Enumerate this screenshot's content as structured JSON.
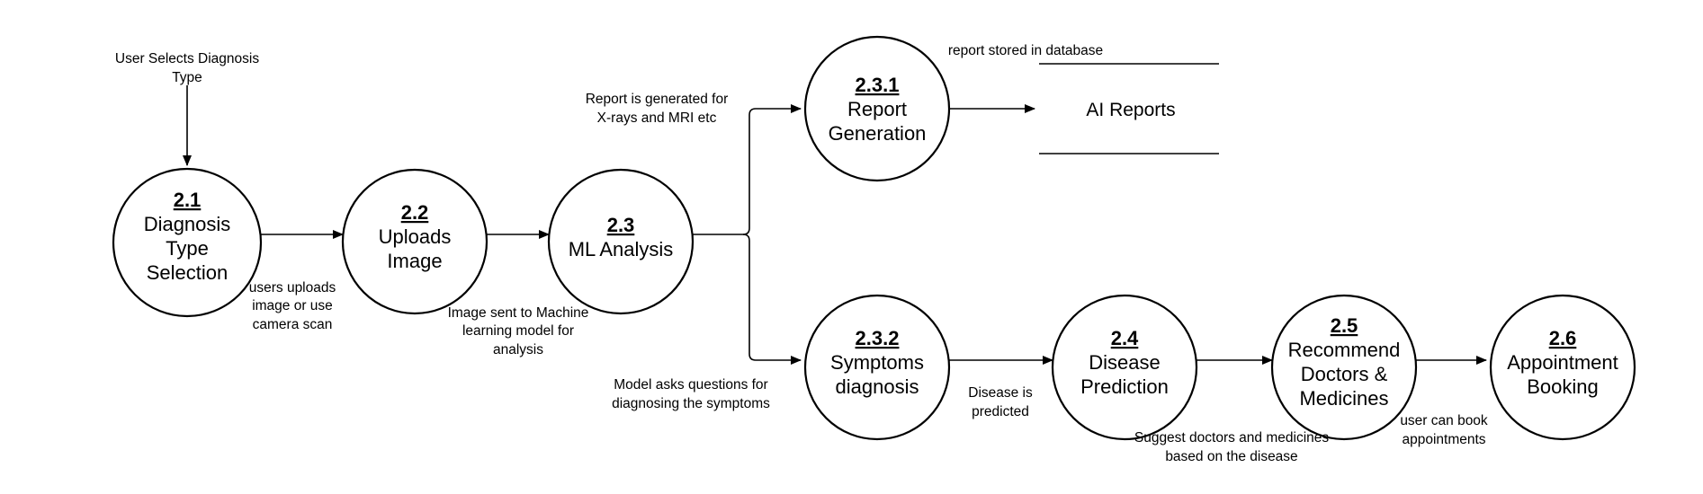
{
  "processes": [
    {
      "id": "2.1",
      "lines": [
        "Diagnosis",
        "Type",
        "Selection"
      ]
    },
    {
      "id": "2.2",
      "lines": [
        "Uploads",
        "Image"
      ]
    },
    {
      "id": "2.3",
      "lines": [
        "ML Analysis"
      ]
    },
    {
      "id": "2.3.1",
      "lines": [
        "Report",
        "Generation"
      ]
    },
    {
      "id": "2.3.2",
      "lines": [
        "Symptoms",
        "diagnosis"
      ]
    },
    {
      "id": "2.4",
      "lines": [
        "Disease",
        "Prediction"
      ]
    },
    {
      "id": "2.5",
      "lines": [
        "Recommend",
        "Doctors &",
        "Medicines"
      ]
    },
    {
      "id": "2.6",
      "lines": [
        "Appointment",
        "Booking"
      ]
    }
  ],
  "datastore": {
    "label": "AI Reports"
  },
  "annotations": {
    "user_selects": [
      "User Selects Diagnosis",
      "Type"
    ],
    "users_uploads": [
      "users uploads",
      "image or use",
      "camera scan"
    ],
    "image_sent": [
      "Image sent to Machine",
      "learning model for",
      "analysis"
    ],
    "report_generated": [
      "Report is generated for",
      "X-rays and MRI etc"
    ],
    "report_stored": [
      "report stored in database"
    ],
    "model_asks": [
      "Model asks questions for",
      "diagnosing the symptoms"
    ],
    "disease_predicted": [
      "Disease is",
      "predicted"
    ],
    "suggest_doctors": [
      "Suggest doctors and medicines",
      "based on the disease"
    ],
    "user_can_book": [
      "user can book",
      "appointments"
    ]
  }
}
